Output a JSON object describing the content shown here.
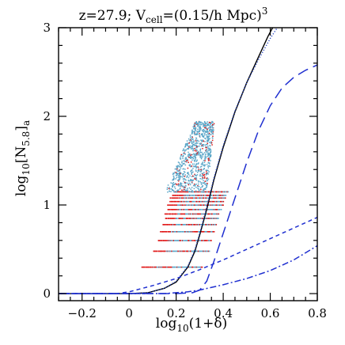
{
  "chart_data": {
    "type": "scatter",
    "title": {
      "prefix": "z=27.9; V",
      "sub": "cell",
      "middle": "=(0.15/h Mpc)",
      "sup": "3"
    },
    "xlabel": {
      "pre": "log",
      "sub": "10",
      "post": "(1+δ)"
    },
    "ylabel": {
      "pre": "log",
      "sub1": "10",
      "mid": "[N",
      "sub2": "5.8",
      "post": "]",
      "sub3": "a"
    },
    "xlim": [
      -0.3,
      0.8
    ],
    "ylim": [
      -0.08,
      3.0
    ],
    "xticks": [
      -0.2,
      0,
      0.2,
      0.4,
      0.6,
      0.8
    ],
    "xtick_labels": [
      "−0.2",
      "0",
      "0.2",
      "0.4",
      "0.6",
      "0.8"
    ],
    "yticks": [
      0,
      1,
      2,
      3
    ],
    "ytick_labels": [
      "0",
      "1",
      "2",
      "3"
    ],
    "grid": false,
    "colors": {
      "scatter_blue": "#5aa6c8",
      "scatter_red": "#e01818",
      "dashed": "#1f2fd0",
      "solid": "#000000",
      "dotted": "#2040c0"
    },
    "scatter_bands": [
      {
        "y": 0.3,
        "xmin": 0.05,
        "xmax": 0.31
      },
      {
        "y": 0.48,
        "xmin": 0.1,
        "xmax": 0.34
      },
      {
        "y": 0.6,
        "xmin": 0.12,
        "xmax": 0.35
      },
      {
        "y": 0.7,
        "xmin": 0.13,
        "xmax": 0.36
      },
      {
        "y": 0.78,
        "xmin": 0.14,
        "xmax": 0.37
      },
      {
        "y": 0.85,
        "xmin": 0.15,
        "xmax": 0.38
      },
      {
        "y": 0.9,
        "xmin": 0.15,
        "xmax": 0.38
      },
      {
        "y": 0.95,
        "xmin": 0.16,
        "xmax": 0.39
      },
      {
        "y": 1.0,
        "xmin": 0.16,
        "xmax": 0.4
      },
      {
        "y": 1.04,
        "xmin": 0.17,
        "xmax": 0.4
      },
      {
        "y": 1.08,
        "xmin": 0.17,
        "xmax": 0.41
      },
      {
        "y": 1.11,
        "xmin": 0.18,
        "xmax": 0.41
      },
      {
        "y": 1.15,
        "xmin": 0.19,
        "xmax": 0.42
      }
    ],
    "cloud": {
      "xmin": 0.12,
      "xmax": 0.46,
      "ymin": 1.15,
      "ymax": 1.95
    },
    "series": [
      {
        "style": "solid",
        "points": [
          [
            -0.3,
            0.0
          ],
          [
            0.0,
            0.0
          ],
          [
            0.08,
            0.01
          ],
          [
            0.15,
            0.06
          ],
          [
            0.2,
            0.13
          ],
          [
            0.25,
            0.3
          ],
          [
            0.28,
            0.48
          ],
          [
            0.3,
            0.66
          ],
          [
            0.33,
            0.95
          ],
          [
            0.36,
            1.28
          ],
          [
            0.4,
            1.65
          ],
          [
            0.45,
            2.05
          ],
          [
            0.5,
            2.38
          ],
          [
            0.55,
            2.67
          ],
          [
            0.59,
            2.9
          ],
          [
            0.61,
            3.0
          ]
        ]
      },
      {
        "style": "dotted",
        "points": [
          [
            -0.3,
            0.0
          ],
          [
            0.0,
            0.0
          ],
          [
            0.08,
            0.01
          ],
          [
            0.15,
            0.06
          ],
          [
            0.2,
            0.14
          ],
          [
            0.25,
            0.31
          ],
          [
            0.28,
            0.5
          ],
          [
            0.3,
            0.68
          ],
          [
            0.33,
            0.98
          ],
          [
            0.36,
            1.3
          ],
          [
            0.4,
            1.67
          ],
          [
            0.45,
            2.06
          ],
          [
            0.5,
            2.38
          ],
          [
            0.55,
            2.64
          ],
          [
            0.6,
            2.88
          ],
          [
            0.63,
            3.0
          ]
        ]
      },
      {
        "style": "long-dash",
        "points": [
          [
            -0.3,
            0.0
          ],
          [
            0.2,
            0.0
          ],
          [
            0.27,
            0.01
          ],
          [
            0.3,
            0.04
          ],
          [
            0.33,
            0.14
          ],
          [
            0.36,
            0.36
          ],
          [
            0.4,
            0.68
          ],
          [
            0.45,
            1.08
          ],
          [
            0.5,
            1.48
          ],
          [
            0.55,
            1.84
          ],
          [
            0.6,
            2.12
          ],
          [
            0.65,
            2.32
          ],
          [
            0.7,
            2.44
          ],
          [
            0.75,
            2.52
          ],
          [
            0.8,
            2.58
          ]
        ]
      },
      {
        "style": "short-dash",
        "points": [
          [
            -0.3,
            0.0
          ],
          [
            -0.05,
            0.0
          ],
          [
            0.0,
            0.02
          ],
          [
            0.1,
            0.09
          ],
          [
            0.2,
            0.17
          ],
          [
            0.3,
            0.27
          ],
          [
            0.4,
            0.38
          ],
          [
            0.5,
            0.5
          ],
          [
            0.6,
            0.62
          ],
          [
            0.7,
            0.74
          ],
          [
            0.8,
            0.86
          ]
        ]
      },
      {
        "style": "dash-dot",
        "points": [
          [
            -0.3,
            0.0
          ],
          [
            0.15,
            0.0
          ],
          [
            0.25,
            0.02
          ],
          [
            0.3,
            0.04
          ],
          [
            0.4,
            0.1
          ],
          [
            0.5,
            0.17
          ],
          [
            0.6,
            0.26
          ],
          [
            0.7,
            0.38
          ],
          [
            0.8,
            0.54
          ]
        ]
      }
    ]
  }
}
